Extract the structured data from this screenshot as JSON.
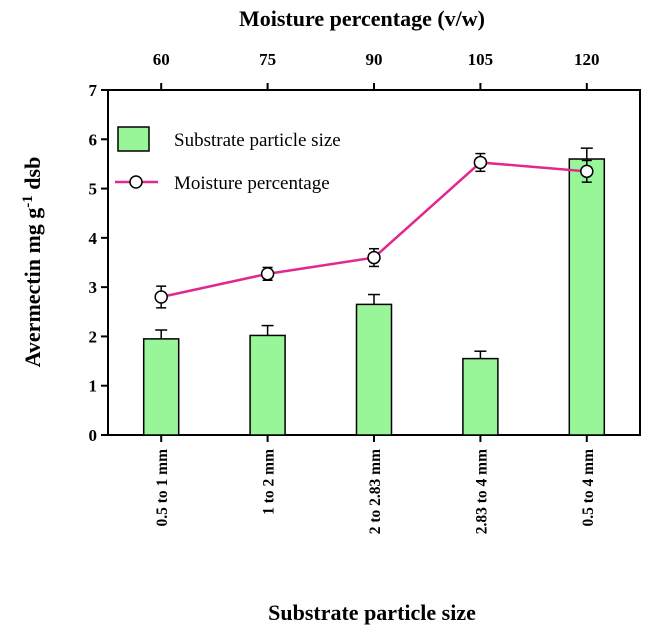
{
  "chart_data": {
    "type": "bar+line",
    "title": "",
    "ylabel_main": "Avermectin mg g",
    "ylabel_superscript": "-1",
    "ylabel_suffix": " dsb",
    "xlabel_bottom": "Substrate particle size",
    "xlabel_top": "Moisture percentage (v/w)",
    "ylim": [
      0,
      7
    ],
    "yticks": [
      "0",
      "1",
      "2",
      "3",
      "4",
      "5",
      "6",
      "7"
    ],
    "categories_bottom": [
      "0.5 to 1 mm",
      "1 to 2 mm",
      "2 to 2.83 mm",
      "2.83 to 4 mm",
      "0.5 to 4 mm"
    ],
    "categories_top": [
      "60",
      "75",
      "90",
      "105",
      "120"
    ],
    "series": [
      {
        "name": "Substrate particle size",
        "kind": "bar",
        "color": "#98f598",
        "values": [
          1.95,
          2.02,
          2.65,
          1.55,
          5.6
        ],
        "errors": [
          0.18,
          0.2,
          0.2,
          0.15,
          0.22
        ]
      },
      {
        "name": "Moisture percentage",
        "kind": "line",
        "color": "#e0288f",
        "values": [
          2.8,
          3.27,
          3.6,
          5.53,
          5.35
        ],
        "errors": [
          0.22,
          0.13,
          0.18,
          0.18,
          0.22
        ]
      }
    ],
    "legend_position": "top-left"
  }
}
